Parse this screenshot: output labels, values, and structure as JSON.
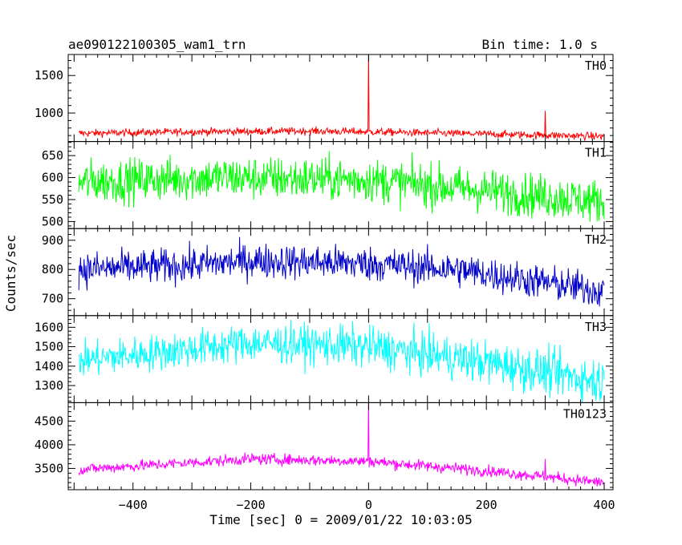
{
  "header": {
    "title": "ae090122100305_wam1_trn",
    "bin_time": "Bin time: 1.0 s"
  },
  "chart_data": {
    "type": "line",
    "x_range": [
      -510,
      415
    ],
    "x_ticks": [
      -400,
      -200,
      0,
      200,
      400
    ],
    "x_tick_labels": [
      "−400",
      "−200",
      "0",
      "200",
      "400"
    ],
    "xlabel": "Time [sec] 0 = 2009/01/22 10:03:05",
    "ylabel": "Counts/sec",
    "grid": false,
    "panels": [
      {
        "name": "TH0",
        "color": "#ff0000",
        "ylim": [
          620,
          1780
        ],
        "yticks": [
          1000,
          1500
        ],
        "trend": [
          [
            -490,
            730
          ],
          [
            -300,
            750
          ],
          [
            -100,
            760
          ],
          [
            0,
            750
          ],
          [
            200,
            720
          ],
          [
            400,
            690
          ]
        ],
        "noise": 25,
        "noise_end": 25,
        "spikes": [
          [
            0,
            1780
          ],
          [
            300,
            1030
          ]
        ]
      },
      {
        "name": "TH1",
        "color": "#00ff00",
        "ylim": [
          484,
          682
        ],
        "yticks": [
          500,
          550,
          600,
          650
        ],
        "trend": [
          [
            -490,
            590
          ],
          [
            -250,
            600
          ],
          [
            0,
            595
          ],
          [
            200,
            570
          ],
          [
            400,
            545
          ]
        ],
        "noise": 25,
        "noise_end": 25,
        "spikes": []
      },
      {
        "name": "TH2",
        "color": "#0000cc",
        "ylim": [
          642,
          940
        ],
        "yticks": [
          700,
          800,
          900
        ],
        "trend": [
          [
            -490,
            800
          ],
          [
            -300,
            815
          ],
          [
            -200,
            830
          ],
          [
            0,
            820
          ],
          [
            150,
            800
          ],
          [
            400,
            725
          ]
        ],
        "noise": 30,
        "noise_end": 30,
        "spikes": []
      },
      {
        "name": "TH3",
        "color": "#00ffff",
        "ylim": [
          1212,
          1660
        ],
        "yticks": [
          1300,
          1400,
          1500,
          1600
        ],
        "trend": [
          [
            -490,
            1430
          ],
          [
            -200,
            1520
          ],
          [
            0,
            1500
          ],
          [
            200,
            1420
          ],
          [
            400,
            1320
          ]
        ],
        "noise": 45,
        "noise_end": 60,
        "spikes": []
      },
      {
        "name": "TH0123",
        "color": "#ff00ff",
        "ylim": [
          3050,
          4890
        ],
        "yticks": [
          3500,
          4000,
          4500
        ],
        "trend": [
          [
            -490,
            3480
          ],
          [
            -200,
            3700
          ],
          [
            0,
            3650
          ],
          [
            200,
            3450
          ],
          [
            400,
            3200
          ]
        ],
        "noise": 60,
        "noise_end": 60,
        "spikes": [
          [
            0,
            4890
          ],
          [
            300,
            3700
          ]
        ]
      }
    ]
  }
}
